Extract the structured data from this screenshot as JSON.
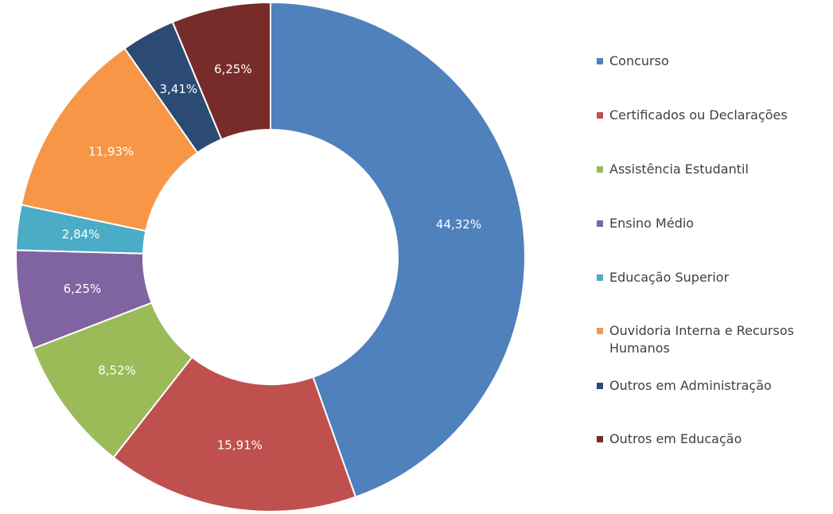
{
  "chart_data": {
    "type": "donut",
    "categories": [
      "Concurso",
      "Certificados ou Declarações",
      "Assistência Estudantil",
      "Ensino Médio",
      "Educação Superior",
      "Ouvidoria Interna e Recursos Humanos",
      "Outros em Administração",
      "Outros em Educação"
    ],
    "values": [
      44.32,
      15.91,
      8.52,
      6.25,
      2.84,
      11.93,
      3.41,
      6.25
    ],
    "value_labels": [
      "44,32%",
      "15,91%",
      "8,52%",
      "6,25%",
      "2,84%",
      "11,93%",
      "3,41%",
      "6,25%"
    ],
    "colors": [
      "#4f81bd",
      "#c0504d",
      "#9bbb59",
      "#8064a2",
      "#4bacc6",
      "#f79646",
      "#2b4b75",
      "#772c2a"
    ],
    "legend": "right"
  }
}
